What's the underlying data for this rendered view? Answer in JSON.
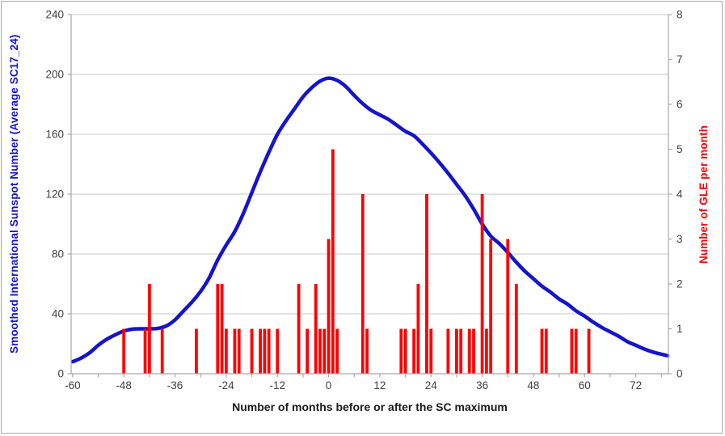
{
  "window": {
    "background": "#ffffff",
    "border_color": "#a9a9a9"
  },
  "chart_data": {
    "type": "bar",
    "subtype": "combo-bar-line",
    "title": "",
    "grid": {
      "show_horizontal": true,
      "color": "#c8c8c8"
    },
    "axis_line_color": "#a8a8a8",
    "tick_label_color": "#3f3f3f",
    "x_axis": {
      "title": "Number of months before or after the SC maximum",
      "title_color": "#1a1a1a",
      "tick_values": [
        -60,
        -48,
        -36,
        -24,
        -12,
        0,
        12,
        24,
        36,
        48,
        60,
        72
      ],
      "minor_tick_step": 6,
      "range": [
        -60.35,
        79.65
      ]
    },
    "left_axis": {
      "title": "Smoothed International Sunspot Number (Average SC17_24)",
      "title_color": "#1414cc",
      "tick_values": [
        0,
        40,
        80,
        120,
        160,
        200,
        240
      ],
      "range": [
        0,
        240
      ]
    },
    "right_axis": {
      "title": "Number of GLE per month",
      "title_color": "#ff0000",
      "tick_values": [
        0,
        1,
        2,
        3,
        4,
        5,
        6,
        7,
        8
      ],
      "range": [
        0,
        8
      ]
    },
    "series": [
      {
        "name": "smoothed-sunspot-number",
        "type": "line",
        "axis": "left",
        "color": "#1414cc",
        "stroke_width": 4.5,
        "points": [
          [
            -60,
            8
          ],
          [
            -58,
            10.5
          ],
          [
            -56,
            14
          ],
          [
            -54,
            19
          ],
          [
            -52,
            23
          ],
          [
            -50,
            26
          ],
          [
            -48,
            28.5
          ],
          [
            -46,
            29.8
          ],
          [
            -44,
            30
          ],
          [
            -42,
            30
          ],
          [
            -40,
            30.3
          ],
          [
            -38,
            32
          ],
          [
            -36,
            36
          ],
          [
            -34,
            42
          ],
          [
            -32,
            48
          ],
          [
            -30,
            55
          ],
          [
            -28,
            64
          ],
          [
            -26,
            76
          ],
          [
            -24,
            86
          ],
          [
            -22,
            95
          ],
          [
            -20,
            107
          ],
          [
            -18,
            121
          ],
          [
            -16,
            135
          ],
          [
            -14,
            148
          ],
          [
            -12,
            160
          ],
          [
            -10,
            169
          ],
          [
            -8,
            177
          ],
          [
            -6,
            185
          ],
          [
            -4,
            191
          ],
          [
            -2,
            195.5
          ],
          [
            0,
            197.5
          ],
          [
            2,
            196
          ],
          [
            4,
            192
          ],
          [
            6,
            186
          ],
          [
            8,
            180.5
          ],
          [
            10,
            176
          ],
          [
            12,
            173
          ],
          [
            14,
            170
          ],
          [
            16,
            166
          ],
          [
            18,
            162
          ],
          [
            20,
            159
          ],
          [
            22,
            153.5
          ],
          [
            24,
            147.5
          ],
          [
            26,
            141
          ],
          [
            28,
            134
          ],
          [
            30,
            126.5
          ],
          [
            32,
            119
          ],
          [
            34,
            110
          ],
          [
            36,
            100
          ],
          [
            38,
            92
          ],
          [
            40,
            87
          ],
          [
            42,
            81
          ],
          [
            44,
            74.5
          ],
          [
            46,
            68.5
          ],
          [
            48,
            63.5
          ],
          [
            50,
            58.5
          ],
          [
            52,
            54.5
          ],
          [
            54,
            50
          ],
          [
            56,
            46.5
          ],
          [
            58,
            42
          ],
          [
            60,
            38.5
          ],
          [
            62,
            34.5
          ],
          [
            64,
            31
          ],
          [
            66,
            28
          ],
          [
            68,
            25
          ],
          [
            70,
            21.5
          ],
          [
            72,
            19
          ],
          [
            74,
            16.5
          ],
          [
            76,
            14.5
          ],
          [
            78,
            13
          ],
          [
            79.5,
            12
          ]
        ]
      },
      {
        "name": "gle-per-month",
        "type": "bar",
        "axis": "right",
        "color": "#ff0000",
        "bar_width": 3.8,
        "points": [
          [
            -48,
            1
          ],
          [
            -43,
            1
          ],
          [
            -42,
            2
          ],
          [
            -39,
            1
          ],
          [
            -31,
            1
          ],
          [
            -26,
            2
          ],
          [
            -25,
            2
          ],
          [
            -24,
            1
          ],
          [
            -22,
            1
          ],
          [
            -21,
            1
          ],
          [
            -18,
            1
          ],
          [
            -16,
            1
          ],
          [
            -15,
            1
          ],
          [
            -14,
            1
          ],
          [
            -12,
            1
          ],
          [
            -7,
            2
          ],
          [
            -5,
            1
          ],
          [
            -3,
            2
          ],
          [
            -2,
            1
          ],
          [
            -1,
            1
          ],
          [
            0,
            3
          ],
          [
            1,
            5
          ],
          [
            2,
            1
          ],
          [
            8,
            4
          ],
          [
            9,
            1
          ],
          [
            17,
            1
          ],
          [
            18,
            1
          ],
          [
            20,
            1
          ],
          [
            21,
            2
          ],
          [
            23,
            4
          ],
          [
            24,
            1
          ],
          [
            28,
            1
          ],
          [
            30,
            1
          ],
          [
            31,
            1
          ],
          [
            33,
            1
          ],
          [
            34,
            1
          ],
          [
            36,
            4
          ],
          [
            37,
            1
          ],
          [
            38,
            3
          ],
          [
            42,
            3
          ],
          [
            44,
            2
          ],
          [
            50,
            1
          ],
          [
            51,
            1
          ],
          [
            57,
            1
          ],
          [
            58,
            1
          ],
          [
            61,
            1
          ]
        ]
      }
    ]
  }
}
